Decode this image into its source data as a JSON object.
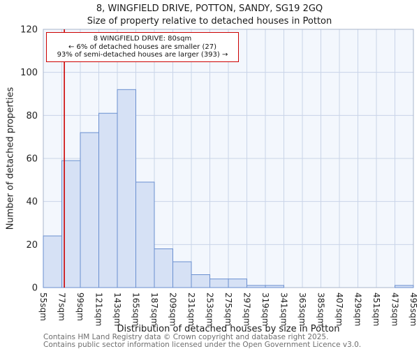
{
  "title": {
    "line1": "8, WINGFIELD DRIVE, POTTON, SANDY, SG19 2GQ",
    "line2": "Size of property relative to detached houses in Potton"
  },
  "annotation": {
    "line1": "8 WINGFIELD DRIVE: 80sqm",
    "line2": "← 6% of detached houses are smaller (27)",
    "line3": "93% of semi-detached houses are larger (393) →"
  },
  "footer": {
    "line1": "Contains HM Land Registry data © Crown copyright and database right 2025.",
    "line2": "Contains public sector information licensed under the Open Government Licence v3.0."
  },
  "chart_data": {
    "type": "bar",
    "title": "8, WINGFIELD DRIVE, POTTON, SANDY, SG19 2GQ",
    "subtitle": "Size of property relative to detached houses in Potton",
    "xlabel": "Distribution of detached houses by size in Potton",
    "ylabel": "Number of detached properties",
    "ylim": [
      0,
      120
    ],
    "yticks": [
      0,
      20,
      40,
      60,
      80,
      100,
      120
    ],
    "grid": true,
    "bin_width_sqm": 22,
    "bin_starts": [
      55,
      77,
      99,
      121,
      143,
      165,
      187,
      209,
      231,
      253,
      275,
      297,
      319,
      341,
      363,
      385,
      407,
      429,
      451,
      473
    ],
    "categories": [
      "55sqm",
      "77sqm",
      "99sqm",
      "121sqm",
      "143sqm",
      "165sqm",
      "187sqm",
      "209sqm",
      "231sqm",
      "253sqm",
      "275sqm",
      "297sqm",
      "319sqm",
      "341sqm",
      "363sqm",
      "385sqm",
      "407sqm",
      "429sqm",
      "451sqm",
      "473sqm",
      "495sqm"
    ],
    "values": [
      24,
      59,
      72,
      81,
      92,
      49,
      18,
      12,
      6,
      4,
      4,
      1,
      1,
      0,
      0,
      0,
      0,
      0,
      0,
      1
    ],
    "marker_value_sqm": 80,
    "marker_color": "#cc0000",
    "bar_fill": "#d6e1f5",
    "bar_stroke": "#6a8fd0",
    "grid_color": "#c9d4e8",
    "plot_border": "#a8b4cc",
    "plot_bg": "#f3f7fd",
    "tick_text_color": "#222222"
  }
}
